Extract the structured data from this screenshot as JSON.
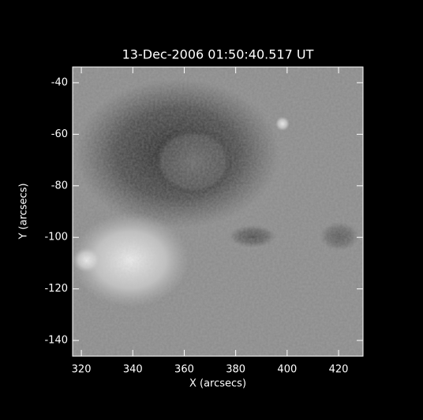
{
  "chart_data": {
    "type": "image",
    "title": "13-Dec-2006 01:50:40.517 UT",
    "xlabel": "X (arcsecs)",
    "ylabel": "Y (arcsecs)",
    "xlim": [
      316.6,
      429.5
    ],
    "ylim": [
      -146.1,
      -33.9
    ],
    "xticks": [
      320,
      340,
      360,
      380,
      400,
      420
    ],
    "yticks": [
      -40,
      -60,
      -80,
      -100,
      -120,
      -140
    ]
  }
}
